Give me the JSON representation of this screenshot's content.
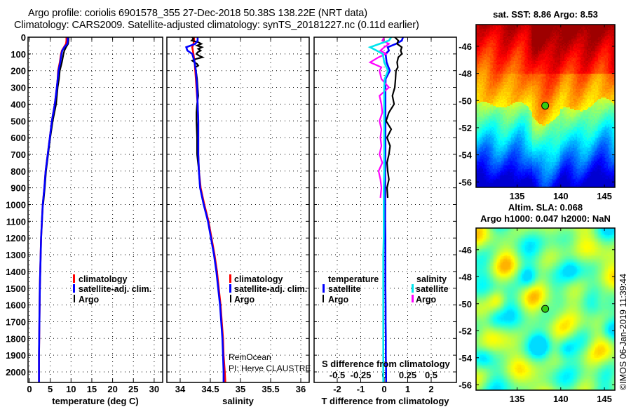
{
  "header": {
    "line1": "Argo profile: coriolis 6901578_355 27-Dec-2018 50.38S 138.22E (NRT data)",
    "line2": "Climatology: CARS2009. Satellite-adjusted climatology: synTS_20181227.nc (0.11d earlier)"
  },
  "footer": {
    "copyright": "©IMOS 06-Jan-2019 11:39:44"
  },
  "credits": {
    "project": "RemOcean",
    "pi": "PI: Herve CLAUSTRE"
  },
  "colors": {
    "climatology": "#ff0000",
    "satellite": "#0000ff",
    "argo": "#000000",
    "sat_salinity": "#00e5ee",
    "argo_salinity": "#ff00ff"
  },
  "chart_data": [
    {
      "type": "line",
      "title": "",
      "xlabel": "temperature (deg C)",
      "ylabel": "",
      "xlim": [
        -1.5,
        31.5
      ],
      "ylim": [
        2070,
        0
      ],
      "xticks": [
        "0",
        "5",
        "10",
        "15",
        "20",
        "25",
        "30"
      ],
      "yticks": [
        "0",
        "100",
        "200",
        "300",
        "400",
        "500",
        "600",
        "700",
        "800",
        "900",
        "1000",
        "1100",
        "1200",
        "1300",
        "1400",
        "1500",
        "1600",
        "1700",
        "1800",
        "1900",
        "2000"
      ],
      "grid": true,
      "legend": {
        "placement": "center",
        "entries": [
          "climatology",
          "satellite-adj. clim.",
          "Argo"
        ]
      },
      "series": [
        {
          "name": "climatology",
          "depth": [
            0,
            20,
            40,
            60,
            80,
            100,
            150,
            200,
            250,
            300,
            400,
            500,
            600,
            700,
            800,
            900,
            1000,
            1100,
            1200,
            1300,
            1400,
            1500,
            1600,
            1700,
            1800,
            1900,
            2000,
            2070
          ],
          "values": [
            8.9,
            8.9,
            8.8,
            8.3,
            7.8,
            7.6,
            7.3,
            6.9,
            6.8,
            6.6,
            6.1,
            5.4,
            4.9,
            4.4,
            3.9,
            3.6,
            3.2,
            3.0,
            2.8,
            2.7,
            2.6,
            2.5,
            2.45,
            2.4,
            2.35,
            2.3,
            2.3,
            2.3
          ]
        },
        {
          "name": "Argo",
          "depth": [
            0,
            20,
            40,
            60,
            80,
            100,
            150,
            200,
            250,
            300,
            400,
            500,
            600,
            700,
            800,
            900,
            1000
          ],
          "values": [
            9.4,
            9.4,
            9.3,
            8.8,
            8.4,
            8.2,
            7.8,
            7.3,
            7.1,
            6.8,
            6.4,
            5.6,
            5.0,
            4.5,
            4.0,
            3.7,
            3.3
          ]
        },
        {
          "name": "satellite-adj. clim.",
          "depth": [
            0,
            20,
            40,
            60,
            80,
            100,
            150,
            200,
            250,
            300,
            400,
            500,
            600,
            700,
            800,
            900,
            1000,
            1100,
            1200,
            1300,
            1400,
            1500,
            1600,
            1700,
            1800,
            1900,
            2000,
            2070
          ],
          "values": [
            9.2,
            9.2,
            9.1,
            8.4,
            7.9,
            7.7,
            7.4,
            7.0,
            6.8,
            6.6,
            6.1,
            5.4,
            4.9,
            4.4,
            3.9,
            3.6,
            3.2,
            3.0,
            2.8,
            2.7,
            2.6,
            2.5,
            2.45,
            2.4,
            2.35,
            2.3,
            2.3,
            2.3
          ]
        }
      ]
    },
    {
      "type": "line",
      "xlabel": "salinity",
      "xlim": [
        33.8,
        36.15
      ],
      "ylim": [
        2070,
        0
      ],
      "xticks": [
        "34",
        "34.5",
        "35",
        "35.5",
        "36"
      ],
      "grid": true,
      "legend": {
        "placement": "center-right",
        "entries": [
          "climatology",
          "satellite-adj. clim.",
          "Argo"
        ]
      },
      "series": [
        {
          "name": "climatology",
          "depth": [
            0,
            20,
            40,
            60,
            80,
            100,
            150,
            200,
            250,
            300,
            400,
            500,
            600,
            700,
            800,
            900,
            1000,
            1100,
            1200,
            1300,
            1400,
            1500,
            1600,
            1700,
            1800,
            1900,
            2000,
            2070
          ],
          "values": [
            34.23,
            34.23,
            34.22,
            34.2,
            34.21,
            34.22,
            34.24,
            34.25,
            34.26,
            34.27,
            34.29,
            34.3,
            34.3,
            34.3,
            34.31,
            34.34,
            34.4,
            34.47,
            34.52,
            34.57,
            34.61,
            34.64,
            34.67,
            34.69,
            34.71,
            34.72,
            34.74,
            34.75
          ]
        },
        {
          "name": "Argo",
          "depth": [
            0,
            10,
            20,
            30,
            40,
            50,
            60,
            70,
            80,
            90,
            100,
            110,
            120,
            130,
            140,
            150,
            160,
            170,
            180,
            200,
            220,
            250,
            300,
            350,
            400,
            450,
            500,
            600,
            700,
            800,
            900,
            1000
          ],
          "values": [
            34.2,
            34.22,
            34.19,
            34.3,
            34.35,
            34.28,
            34.36,
            34.3,
            34.34,
            34.29,
            34.27,
            34.31,
            34.37,
            34.26,
            34.2,
            34.24,
            34.28,
            34.3,
            34.25,
            34.26,
            34.27,
            34.28,
            34.29,
            34.3,
            34.28,
            34.27,
            34.27,
            34.28,
            34.28,
            34.31,
            34.33,
            34.39
          ]
        },
        {
          "name": "satellite-adj. clim.",
          "depth": [
            0,
            20,
            40,
            60,
            80,
            100,
            150,
            200,
            250,
            300,
            400,
            500,
            600,
            700,
            800,
            900,
            1000,
            1100,
            1200,
            1300,
            1400,
            1500,
            1600,
            1700,
            1800,
            1900,
            2000,
            2070
          ],
          "values": [
            34.29,
            34.29,
            34.25,
            34.1,
            34.12,
            34.2,
            34.24,
            34.26,
            34.27,
            34.28,
            34.29,
            34.3,
            34.3,
            34.3,
            34.31,
            34.33,
            34.39,
            34.46,
            34.51,
            34.56,
            34.6,
            34.63,
            34.66,
            34.68,
            34.7,
            34.71,
            34.72,
            34.72
          ]
        }
      ]
    },
    {
      "type": "line",
      "xlabel": "T difference from climatology",
      "xlabel2": "S difference from climatology",
      "xlim": [
        -3.2,
        3.1
      ],
      "ylim": [
        2070,
        0
      ],
      "xticks": [
        "-2",
        "-1",
        "0",
        "1",
        "2"
      ],
      "xticks2": [
        "-0.5",
        "-0.25",
        "0",
        "0.25",
        "0.5"
      ],
      "grid": true,
      "legend": {
        "placement": "bottom",
        "groups": [
          "temperature",
          "salinity"
        ],
        "entries": [
          "satellite",
          "Argo",
          "satellite",
          "Argo"
        ]
      },
      "series": [
        {
          "name": "T satellite",
          "depth": [
            0,
            20,
            40,
            60,
            80,
            100,
            150,
            200,
            250,
            300,
            400,
            500,
            600,
            700,
            800,
            900,
            1000,
            1100,
            1200,
            1300,
            1400,
            1500,
            1600,
            1700,
            1800,
            1900,
            2000,
            2070
          ],
          "values": [
            0.8,
            0.75,
            0.5,
            0.15,
            0.2,
            0.06,
            0.1,
            0.24,
            0.06,
            0.05,
            0.05,
            0.05,
            0.05,
            0.05,
            0.04,
            0.04,
            0.04,
            0.04,
            0.05,
            0.05,
            0.05,
            0.05,
            0.06,
            0.06,
            0.07,
            0.07,
            0.08,
            0.08
          ]
        },
        {
          "name": "T Argo",
          "depth": [
            0,
            20,
            40,
            60,
            80,
            100,
            120,
            150,
            180,
            200,
            250,
            300,
            350,
            400,
            450,
            500,
            550,
            600,
            650,
            700,
            750,
            800,
            850,
            900,
            960
          ],
          "values": [
            0.45,
            0.6,
            0.55,
            0.75,
            0.7,
            0.75,
            0.6,
            0.55,
            0.58,
            0.5,
            0.48,
            0.45,
            0.35,
            0.42,
            0.2,
            0.08,
            0.3,
            0.12,
            0.25,
            0.2,
            0.12,
            0.15,
            0.2,
            0.12,
            0.15
          ]
        },
        {
          "name": "S Argo",
          "depth": [
            0,
            20,
            40,
            60,
            80,
            100,
            120,
            150,
            180,
            200,
            250,
            300,
            350,
            400,
            450,
            500,
            550,
            600,
            650,
            700,
            750,
            800,
            850,
            900,
            960
          ],
          "values": [
            0.0,
            -0.02,
            0.05,
            0.0,
            -0.04,
            0.02,
            -0.06,
            -0.15,
            -0.03,
            -0.05,
            -0.03,
            0.05,
            -0.05,
            -0.03,
            -0.02,
            -0.05,
            -0.03,
            -0.04,
            -0.03,
            -0.05,
            -0.02,
            -0.06,
            -0.04,
            -0.03,
            -0.04
          ]
        },
        {
          "name": "S satellite",
          "depth": [
            0,
            20,
            40,
            60,
            80,
            100,
            150,
            200,
            250,
            300,
            400,
            500,
            600,
            700,
            800,
            900,
            1000,
            1100,
            1200,
            1300,
            1400,
            1500,
            1600,
            1700,
            1800,
            1900,
            2000,
            2070
          ],
          "values": [
            0.075,
            0.05,
            -0.05,
            -0.15,
            -0.08,
            -0.015,
            0.0,
            0.04,
            0.005,
            0.0,
            0.0,
            0.0,
            0.0,
            0.0,
            0.0,
            -0.005,
            -0.005,
            -0.005,
            -0.005,
            -0.01,
            -0.01,
            -0.01,
            -0.01,
            -0.01,
            -0.01,
            -0.01,
            -0.01,
            -0.01
          ]
        }
      ]
    },
    {
      "type": "heatmap",
      "title": "sat. SST: 8.86 Argo: 8.53",
      "xlim": [
        130.3,
        146.2
      ],
      "ylim": [
        -56.4,
        -44.4
      ],
      "xticks": [
        "135",
        "140",
        "145"
      ],
      "yticks": [
        "-46",
        "-48",
        "-50",
        "-52",
        "-54",
        "-56"
      ],
      "marker": {
        "lon": 138.22,
        "lat": -50.38
      }
    },
    {
      "type": "heatmap",
      "title": "Altim. SLA: 0.068",
      "subtitle": "Argo h1000: 0.047 h2000: NaN",
      "xlim": [
        130.3,
        146.2
      ],
      "ylim": [
        -56.4,
        -44.4
      ],
      "xticks": [
        "135",
        "140",
        "145"
      ],
      "yticks": [
        "-46",
        "-48",
        "-50",
        "-52",
        "-54",
        "-56"
      ],
      "marker": {
        "lon": 138.22,
        "lat": -50.38
      }
    }
  ]
}
